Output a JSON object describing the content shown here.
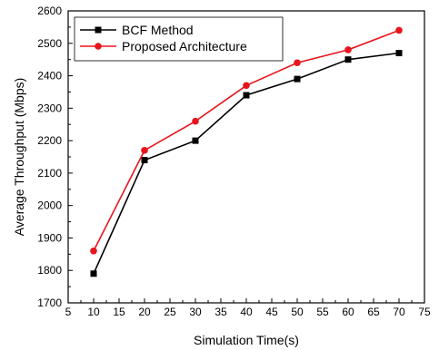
{
  "chart_data": {
    "type": "line",
    "xlabel": "Simulation Time(s)",
    "ylabel": "Average Throughput (Mbps)",
    "xlim": [
      5,
      75
    ],
    "ylim": [
      1700,
      2600
    ],
    "xticks": [
      5,
      10,
      15,
      20,
      25,
      30,
      35,
      40,
      45,
      50,
      55,
      60,
      65,
      70,
      75
    ],
    "yticks": [
      1700,
      1800,
      1900,
      2000,
      2100,
      2200,
      2300,
      2400,
      2500,
      2600
    ],
    "grid": false,
    "legend_position": "top-left",
    "x": [
      10,
      20,
      30,
      40,
      50,
      60,
      70
    ],
    "series": [
      {
        "name": "BCF Method",
        "color": "#000000",
        "marker": "square",
        "values": [
          1790,
          2140,
          2200,
          2340,
          2390,
          2450,
          2470
        ]
      },
      {
        "name": "Proposed Architecture",
        "color": "#e8141c",
        "marker": "circle",
        "values": [
          1860,
          2170,
          2260,
          2370,
          2440,
          2480,
          2540
        ]
      }
    ]
  }
}
